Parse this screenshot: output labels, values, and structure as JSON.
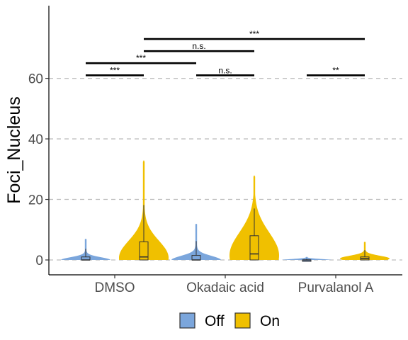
{
  "chart_data": {
    "type": "violin",
    "ylabel": "Foci_Nucleus",
    "xlabel": "",
    "ylim": [
      -5,
      84
    ],
    "yticks": [
      0,
      20,
      40,
      60
    ],
    "grid": "horizontal-dashed",
    "categories": [
      "DMSO",
      "Okadaic acid",
      "Purvalanol A"
    ],
    "legend": {
      "position": "bottom",
      "items": [
        "Off",
        "On"
      ]
    },
    "series": [
      {
        "name": "Off",
        "color": "#7ba6dc",
        "groups": [
          {
            "category": "DMSO",
            "min": 0,
            "q1": 0,
            "median": 0,
            "q3": 1,
            "max": 7
          },
          {
            "category": "Okadaic acid",
            "min": 0,
            "q1": 0,
            "median": 0,
            "q3": 1.5,
            "max": 12
          },
          {
            "category": "Purvalanol A",
            "min": 0,
            "q1": 0,
            "median": 0,
            "q3": 0,
            "max": 1
          }
        ]
      },
      {
        "name": "On",
        "color": "#f0c000",
        "groups": [
          {
            "category": "DMSO",
            "min": 0,
            "q1": 0,
            "median": 1,
            "q3": 6,
            "max": 33
          },
          {
            "category": "Okadaic acid",
            "min": 0,
            "q1": 0,
            "median": 2,
            "q3": 8,
            "max": 28
          },
          {
            "category": "Purvalanol A",
            "min": 0,
            "q1": 0,
            "median": 0.5,
            "q3": 1,
            "max": 6
          }
        ]
      }
    ],
    "comparisons": [
      {
        "from": [
          "DMSO",
          "Off"
        ],
        "to": [
          "DMSO",
          "On"
        ],
        "y": 61,
        "label": "***"
      },
      {
        "from": [
          "Okadaic acid",
          "Off"
        ],
        "to": [
          "Okadaic acid",
          "On"
        ],
        "y": 61,
        "label": "n.s."
      },
      {
        "from": [
          "Purvalanol A",
          "Off"
        ],
        "to": [
          "Purvalanol A",
          "On"
        ],
        "y": 61,
        "label": "**"
      },
      {
        "from": [
          "DMSO",
          "Off"
        ],
        "to": [
          "Okadaic acid",
          "Off"
        ],
        "y": 65,
        "label": "***"
      },
      {
        "from": [
          "DMSO",
          "On"
        ],
        "to": [
          "Okadaic acid",
          "On"
        ],
        "y": 69,
        "label": "n.s."
      },
      {
        "from": [
          "DMSO",
          "On"
        ],
        "to": [
          "Purvalanol A",
          "On"
        ],
        "y": 73,
        "label": "***"
      }
    ]
  }
}
